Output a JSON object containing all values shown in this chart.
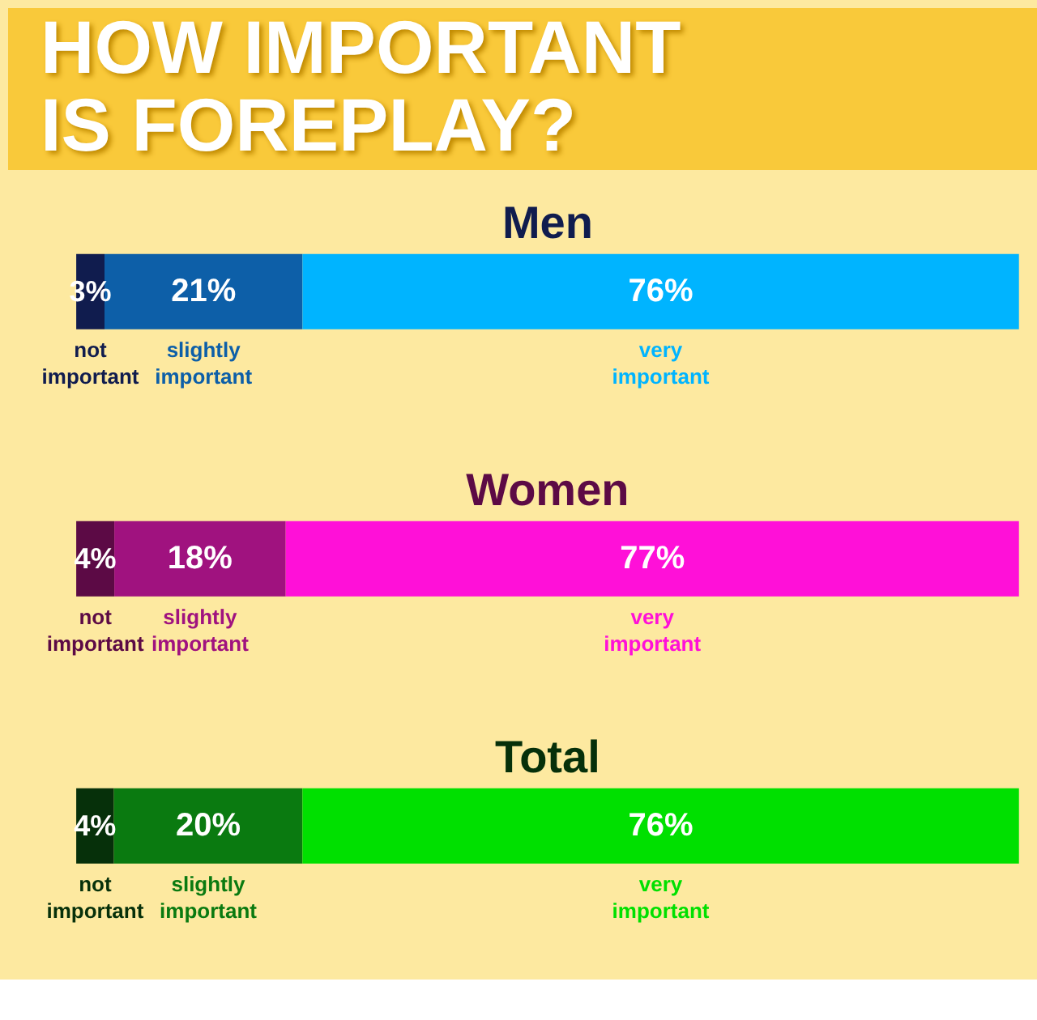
{
  "chart_data": [
    {
      "type": "bar",
      "orientation": "horizontal",
      "stacked": true,
      "title": "HOW IMPORTANT IS FOREPLAY?",
      "subtitle": "Men",
      "categories": [
        null
      ],
      "tick_labels": false,
      "series": [
        {
          "name": "not important",
          "color": "#101c4e",
          "values": [
            3
          ],
          "value_labels": [
            "3%"
          ]
        },
        {
          "name": "slightly important",
          "color": "#0d5fa8",
          "values": [
            21
          ],
          "value_labels": [
            "21%"
          ]
        },
        {
          "name": "very important",
          "color": "#00b4ff",
          "values": [
            76
          ],
          "value_labels": [
            "76%"
          ]
        }
      ]
    },
    {
      "type": "bar",
      "orientation": "horizontal",
      "stacked": true,
      "title": "Women",
      "categories": [
        null
      ],
      "tick_labels": false,
      "series": [
        {
          "name": "not important",
          "color": "#5c0a45",
          "values": [
            4
          ],
          "value_labels": [
            "4%"
          ]
        },
        {
          "name": "slightly important",
          "color": "#a0127f",
          "values": [
            18
          ],
          "value_labels": [
            "18%"
          ]
        },
        {
          "name": "very important",
          "color": "#ff10d8",
          "values": [
            77
          ],
          "value_labels": [
            "77%"
          ]
        }
      ]
    },
    {
      "type": "bar",
      "orientation": "horizontal",
      "stacked": true,
      "title": "Total",
      "categories": [
        null
      ],
      "tick_labels": false,
      "series": [
        {
          "name": "not important",
          "color": "#06300a",
          "values": [
            4
          ],
          "value_labels": [
            "4%"
          ]
        },
        {
          "name": "slightly important",
          "color": "#0a7a10",
          "values": [
            20
          ],
          "value_labels": [
            "20%"
          ]
        },
        {
          "name": "very important",
          "color": "#00e000",
          "values": [
            76
          ],
          "value_labels": [
            "76%"
          ]
        }
      ]
    }
  ]
}
